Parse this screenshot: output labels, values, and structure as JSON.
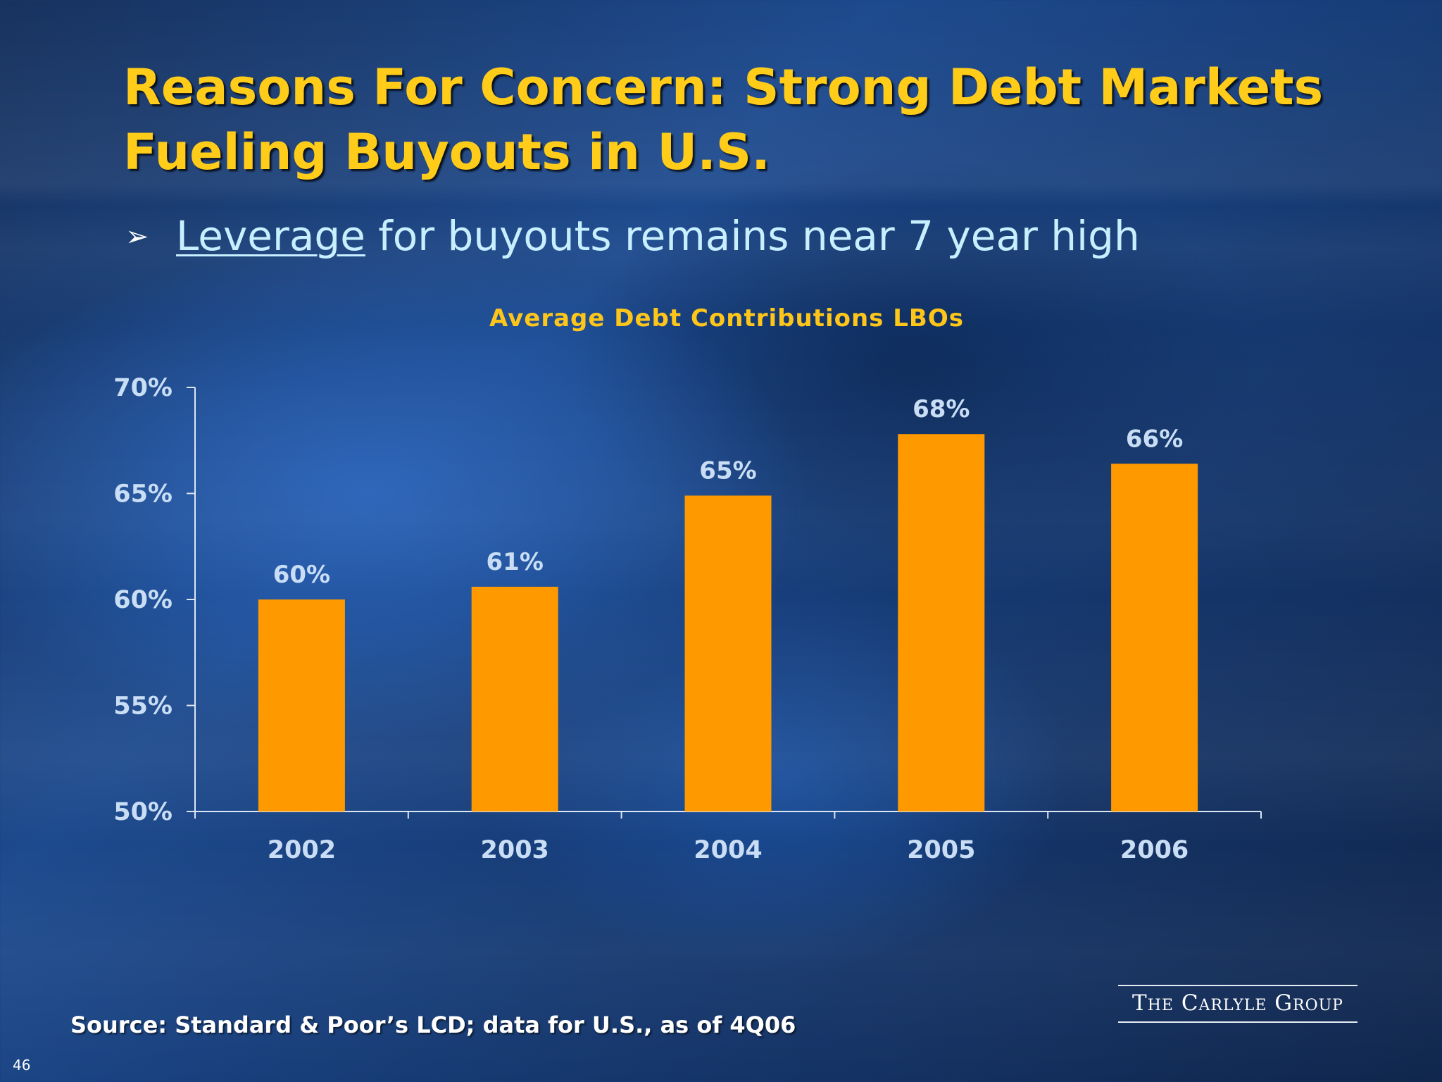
{
  "slide": {
    "title_line1": "Reasons For Concern: Strong Debt Markets",
    "title_line2": "Fueling Buyouts in U.S.",
    "bullet_symbol": "➢",
    "bullet_underlined": "Leverage",
    "bullet_rest": " for buyouts remains near 7 year high",
    "source": "Source: Standard & Poor’s LCD; data for U.S., as of 4Q06",
    "logo": "The Carlyle Group",
    "page_number": "46"
  },
  "colors": {
    "bar": "#ff9900",
    "axis": "#dbe6f5",
    "title": "#ffcc1a"
  },
  "chart_data": {
    "type": "bar",
    "title": "Average Debt Contributions LBOs",
    "categories": [
      "2002",
      "2003",
      "2004",
      "2005",
      "2006"
    ],
    "values": [
      60,
      60.6,
      64.9,
      67.8,
      66.4
    ],
    "data_labels": [
      "60%",
      "61%",
      "65%",
      "68%",
      "66%"
    ],
    "ylim": [
      50,
      70
    ],
    "yticks": [
      50,
      55,
      60,
      65,
      70
    ],
    "ytick_labels": [
      "50%",
      "55%",
      "60%",
      "65%",
      "70%"
    ],
    "xlabel": "",
    "ylabel": "",
    "grid": false,
    "legend": "none"
  }
}
